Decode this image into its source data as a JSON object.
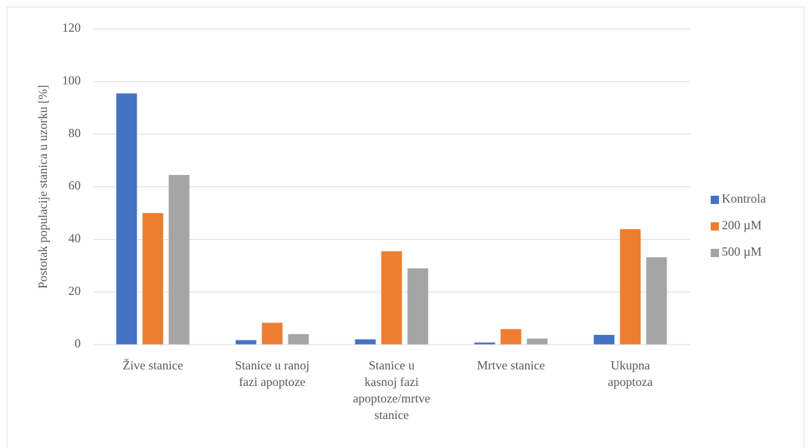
{
  "chart_data": {
    "type": "bar",
    "y_label": "Postotak populacije stanica u uzorku [%]",
    "categories": [
      "Žive stanice",
      "Stanice u ranoj\nfazi apoptoze",
      "Stanice u\nkasnoj fazi\napoptoze/mrtve\nstanice",
      "Mrtve stanice",
      "Ukupna\napoptoza"
    ],
    "series": [
      {
        "name": "Kontrola",
        "color": "#4472c4",
        "values": [
          95.5,
          1.7,
          2.0,
          0.8,
          3.7
        ]
      },
      {
        "name": "200 µM",
        "color": "#ed7d31",
        "values": [
          50.0,
          8.3,
          35.5,
          5.9,
          43.9
        ]
      },
      {
        "name": "500 µM",
        "color": "#a5a5a5",
        "values": [
          64.5,
          4.0,
          29.0,
          2.3,
          33.2
        ]
      }
    ],
    "ylim": [
      0,
      120
    ],
    "yticks": [
      0,
      20,
      40,
      60,
      80,
      100,
      120
    ],
    "grid": true,
    "legend": "right"
  }
}
